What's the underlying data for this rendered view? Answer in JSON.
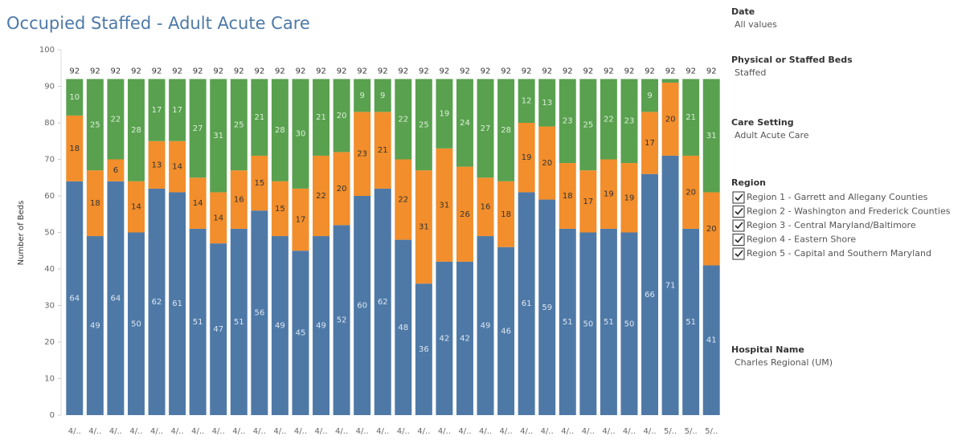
{
  "chart_data": {
    "type": "stacked_bar",
    "title": "Occupied Staffed - Adult Acute Care",
    "ylabel": "Number of Beds",
    "categories": [
      "4/..",
      "4/..",
      "4/..",
      "4/..",
      "4/..",
      "4/..",
      "4/..",
      "4/..",
      "4/..",
      "4/..",
      "4/..",
      "4/..",
      "4/..",
      "4/..",
      "4/..",
      "4/..",
      "4/..",
      "4/..",
      "4/..",
      "4/..",
      "4/..",
      "4/..",
      "4/..",
      "4/..",
      "4/..",
      "4/..",
      "4/..",
      "4/..",
      "4/..",
      "5/..",
      "5/..",
      "5/.."
    ],
    "series": [
      {
        "color": "#4e79a7",
        "label_color": "#dce6f0",
        "values": [
          64,
          49,
          64,
          50,
          62,
          61,
          51,
          47,
          51,
          56,
          49,
          45,
          49,
          52,
          60,
          62,
          48,
          36,
          42,
          42,
          49,
          46,
          61,
          59,
          51,
          50,
          51,
          50,
          66,
          71,
          51,
          41
        ]
      },
      {
        "color": "#f28e2b",
        "label_color": "#333333",
        "values": [
          18,
          18,
          6,
          14,
          13,
          14,
          14,
          14,
          16,
          15,
          15,
          17,
          22,
          20,
          23,
          21,
          22,
          31,
          31,
          26,
          16,
          18,
          19,
          20,
          18,
          17,
          19,
          19,
          17,
          20,
          20,
          20
        ]
      },
      {
        "color": "#59a14f",
        "label_color": "#dcefd8",
        "values": [
          10,
          25,
          22,
          28,
          17,
          17,
          27,
          31,
          25,
          21,
          28,
          30,
          21,
          20,
          9,
          9,
          22,
          25,
          19,
          24,
          27,
          28,
          12,
          13,
          23,
          25,
          22,
          23,
          9,
          1,
          21,
          31
        ]
      }
    ],
    "totals": [
      92,
      92,
      92,
      92,
      92,
      92,
      92,
      92,
      92,
      92,
      92,
      92,
      92,
      92,
      92,
      92,
      92,
      92,
      92,
      92,
      92,
      92,
      92,
      92,
      92,
      92,
      92,
      92,
      92,
      92,
      92,
      92
    ],
    "ylim": [
      0,
      100
    ],
    "yticks": [
      0,
      10,
      20,
      30,
      40,
      50,
      60,
      70,
      80,
      90,
      100
    ]
  },
  "filters": [
    {
      "title": "Date",
      "value": "All values"
    },
    {
      "title": "Physical or Staffed Beds",
      "value": "Staffed"
    },
    {
      "title": "Care Setting",
      "value": "Adult Acute Care"
    },
    {
      "title": "Region",
      "options": [
        "Region 1 - Garrett and Allegany Counties",
        "Region 2 - Washington and Frederick Counties",
        "Region 3 - Central Maryland/Baltimore",
        "Region 4 - Eastern Shore",
        "Region 5 - Capital and Southern Maryland"
      ]
    },
    {
      "title": "Hospital Name",
      "value": "Charles Regional (UM)"
    }
  ]
}
